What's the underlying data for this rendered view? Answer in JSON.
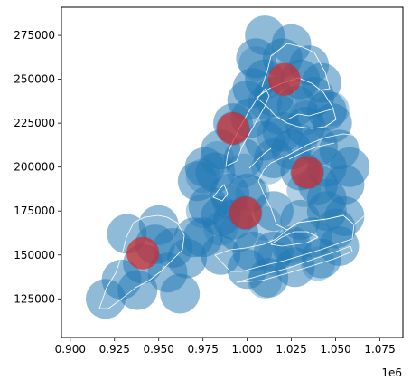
{
  "chart_data": {
    "type": "map",
    "title": "",
    "xlabel": "",
    "ylabel": "",
    "x_offset_text": "1e6",
    "xlim": [
      0.895,
      1.088
    ],
    "ylim": [
      103000,
      291000
    ],
    "x_ticks": [
      0.9,
      0.925,
      0.95,
      0.975,
      1.0,
      1.025,
      1.05,
      1.075
    ],
    "x_tick_labels": [
      "0.900",
      "0.925",
      "0.950",
      "0.975",
      "1.000",
      "1.025",
      "1.050",
      "1.075"
    ],
    "y_ticks": [
      125000,
      150000,
      175000,
      200000,
      225000,
      250000,
      275000
    ],
    "y_tick_labels": [
      "125000",
      "150000",
      "175000",
      "200000",
      "225000",
      "250000",
      "275000"
    ],
    "grid": false,
    "colors": {
      "buffer": "#1f77b4",
      "centroid": "#d62728",
      "boundary": "#ffffff"
    },
    "borough_centroids": [
      {
        "x": 0.941,
        "y": 151000
      },
      {
        "x": 0.999,
        "y": 174000
      },
      {
        "x": 0.992,
        "y": 222000
      },
      {
        "x": 1.021,
        "y": 250000
      },
      {
        "x": 1.034,
        "y": 197000
      }
    ],
    "buffer_circles": [
      [
        0.92,
        125000
      ],
      [
        0.929,
        136000
      ],
      [
        0.941,
        145000
      ],
      [
        0.955,
        140000
      ],
      [
        0.966,
        148000
      ],
      [
        0.95,
        167000
      ],
      [
        0.932,
        162000
      ],
      [
        0.97,
        160000
      ],
      [
        0.962,
        128000
      ],
      [
        0.938,
        130000
      ],
      [
        0.948,
        156000
      ],
      [
        0.958,
        154000
      ],
      [
        0.975,
        160000
      ],
      [
        0.985,
        150000
      ],
      [
        0.985,
        172000
      ],
      [
        0.995,
        163000
      ],
      [
        1.003,
        152000
      ],
      [
        1.0,
        142000
      ],
      [
        1.012,
        137000
      ],
      [
        1.027,
        143000
      ],
      [
        1.042,
        148000
      ],
      [
        1.052,
        155000
      ],
      [
        1.05,
        165000
      ],
      [
        1.037,
        160000
      ],
      [
        1.015,
        152000
      ],
      [
        1.025,
        155000
      ],
      [
        1.0,
        185000
      ],
      [
        1.015,
        175000
      ],
      [
        1.03,
        170000
      ],
      [
        1.045,
        175000
      ],
      [
        1.055,
        172000
      ],
      [
        1.045,
        182000
      ],
      [
        0.992,
        170000
      ],
      [
        0.978,
        178000
      ],
      [
        0.99,
        185000
      ],
      [
        0.972,
        192000
      ],
      [
        0.982,
        197000
      ],
      [
        0.985,
        210000
      ],
      [
        0.992,
        225000
      ],
      [
        1.0,
        238000
      ],
      [
        0.976,
        200000
      ],
      [
        0.998,
        205000
      ],
      [
        1.003,
        245000
      ],
      [
        1.015,
        205000
      ],
      [
        1.03,
        198000
      ],
      [
        1.045,
        200000
      ],
      [
        1.052,
        210000
      ],
      [
        1.04,
        212000
      ],
      [
        1.02,
        220000
      ],
      [
        1.033,
        223000
      ],
      [
        1.048,
        225000
      ],
      [
        1.055,
        190000
      ],
      [
        1.01,
        215000
      ],
      [
        1.025,
        210000
      ],
      [
        1.04,
        190000
      ],
      [
        1.058,
        200000
      ],
      [
        1.005,
        262000
      ],
      [
        1.01,
        250000
      ],
      [
        1.02,
        262000
      ],
      [
        1.03,
        250000
      ],
      [
        1.038,
        240000
      ],
      [
        1.028,
        235000
      ],
      [
        1.015,
        240000
      ],
      [
        1.045,
        232000
      ],
      [
        1.01,
        275000
      ],
      [
        1.025,
        270000
      ],
      [
        1.035,
        258000
      ],
      [
        1.042,
        248000
      ],
      [
        1.002,
        228000
      ],
      [
        1.018,
        230000
      ]
    ],
    "dark_circles": [
      [
        1.005,
        259000
      ],
      [
        0.992,
        222000
      ],
      [
        1.01,
        237000
      ],
      [
        1.02,
        250000
      ],
      [
        1.033,
        228000
      ],
      [
        1.048,
        233000
      ],
      [
        1.03,
        215000
      ],
      [
        1.015,
        218000
      ],
      [
        0.983,
        205000
      ],
      [
        0.975,
        195000
      ],
      [
        0.998,
        198000
      ],
      [
        1.012,
        200000
      ],
      [
        1.003,
        185000
      ],
      [
        0.99,
        180000
      ],
      [
        0.975,
        175000
      ],
      [
        0.985,
        165000
      ],
      [
        0.999,
        174000
      ],
      [
        1.01,
        168000
      ],
      [
        1.015,
        148000
      ],
      [
        1.01,
        135000
      ],
      [
        1.025,
        155000
      ],
      [
        1.032,
        187000
      ],
      [
        1.034,
        197000
      ],
      [
        1.04,
        145000
      ]
    ]
  }
}
